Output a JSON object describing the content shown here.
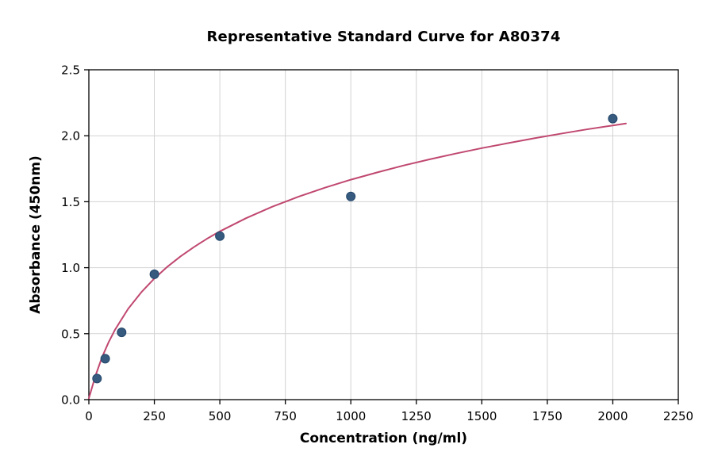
{
  "chart_data": {
    "type": "scatter",
    "title": "Representative Standard Curve for A80374",
    "xlabel": "Concentration (ng/ml)",
    "ylabel": "Absorbance (450nm)",
    "xlim": [
      0,
      2250
    ],
    "ylim": [
      0,
      2.5
    ],
    "x_ticks": [
      0,
      250,
      500,
      750,
      1000,
      1250,
      1500,
      1750,
      2000,
      2250
    ],
    "x_tick_labels": [
      "0",
      "250",
      "500",
      "750",
      "1000",
      "1250",
      "1500",
      "1750",
      "2000",
      "2250"
    ],
    "y_ticks": [
      0.0,
      0.5,
      1.0,
      1.5,
      2.0,
      2.5
    ],
    "y_tick_labels": [
      "0.0",
      "0.5",
      "1.0",
      "1.5",
      "2.0",
      "2.5"
    ],
    "grid": true,
    "legend": "none",
    "points": {
      "x": [
        31.25,
        62.5,
        125,
        250,
        500,
        1000,
        2000
      ],
      "y": [
        0.16,
        0.31,
        0.51,
        0.95,
        1.24,
        1.54,
        2.13
      ]
    },
    "curve": {
      "x": [
        0,
        25,
        50,
        75,
        100,
        150,
        200,
        250,
        300,
        350,
        400,
        450,
        500,
        600,
        700,
        800,
        900,
        1000,
        1100,
        1200,
        1300,
        1400,
        1500,
        1600,
        1700,
        1800,
        1900,
        2000,
        2050
      ],
      "y": [
        0.01,
        0.18,
        0.32,
        0.434,
        0.53,
        0.688,
        0.813,
        0.918,
        1.008,
        1.086,
        1.155,
        1.218,
        1.275,
        1.375,
        1.462,
        1.538,
        1.606,
        1.667,
        1.722,
        1.774,
        1.821,
        1.865,
        1.906,
        1.944,
        1.981,
        2.015,
        2.048,
        2.078,
        2.093
      ]
    },
    "colors": {
      "point_fill": "#375a7f",
      "point_edge": "#23476b",
      "curve": "#c0486f",
      "grid": "#d2d2d2",
      "axis": "#000000",
      "background": "#ffffff"
    }
  }
}
